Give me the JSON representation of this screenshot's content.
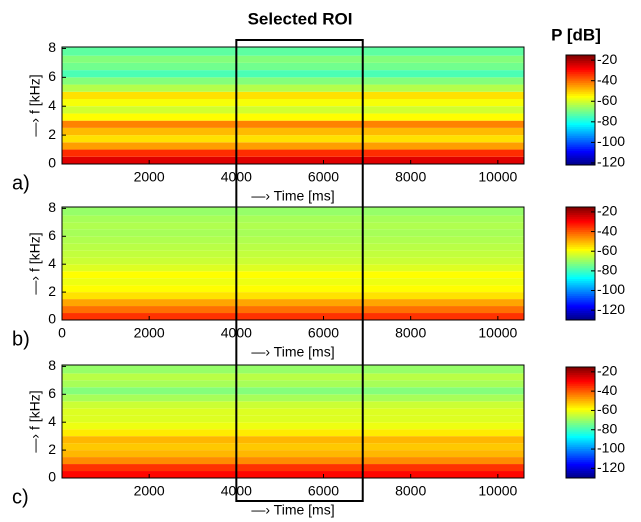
{
  "chart_data": [
    {
      "type": "spectrogram",
      "title": "Selected ROI",
      "colorbar_title": "P [dB]",
      "panel_label": "a)",
      "xlabel": "—› Time [ms]",
      "ylabel": "—› f [kHz]",
      "xlim": [
        0,
        10600
      ],
      "xticks": [
        2000,
        4000,
        6000,
        8000,
        10000
      ],
      "ylim": [
        0,
        8.1
      ],
      "yticks": [
        0,
        2,
        4,
        6,
        8
      ],
      "roi_x": [
        4000,
        6900
      ],
      "freq_bins": [
        0,
        0.5,
        1,
        1.5,
        2,
        2.5,
        3,
        3.5,
        4,
        4.5,
        5,
        5.5,
        6,
        6.5,
        7,
        7.5,
        8.1
      ],
      "levels": [
        -25,
        -33,
        -45,
        -52,
        -48,
        -42,
        -55,
        -60,
        -56,
        -52,
        -63,
        -68,
        -74,
        -70,
        -68,
        -72
      ],
      "clim": [
        -122,
        -15
      ],
      "cticks": [
        -20,
        -40,
        -60,
        -80,
        -100,
        -120
      ]
    },
    {
      "type": "spectrogram",
      "panel_label": "b)",
      "xlabel": "—› Time [ms]",
      "ylabel": "—› f [kHz]",
      "xlim": [
        0,
        10600
      ],
      "xticks": [
        0,
        2000,
        4000,
        6000,
        8000,
        10000
      ],
      "ylim": [
        0,
        8.1
      ],
      "yticks": [
        0,
        2,
        4,
        6,
        8
      ],
      "freq_bins": [
        0,
        0.5,
        1,
        1.5,
        2,
        2.5,
        3,
        3.5,
        4,
        4.5,
        5,
        5.5,
        6,
        6.5,
        7,
        7.5,
        8.1
      ],
      "levels": [
        -35,
        -42,
        -48,
        -55,
        -58,
        -60,
        -58,
        -62,
        -64,
        -65,
        -66,
        -67,
        -68,
        -67,
        -68,
        -70
      ],
      "clim": [
        -130,
        -15
      ],
      "cticks": [
        -20,
        -40,
        -60,
        -80,
        -100,
        -120
      ]
    },
    {
      "type": "spectrogram",
      "panel_label": "c)",
      "xlabel": "—› Time [ms]",
      "ylabel": "—› f [kHz]",
      "xlim": [
        0,
        10600
      ],
      "xticks": [
        2000,
        4000,
        6000,
        8000,
        10000
      ],
      "ylim": [
        0,
        8.1
      ],
      "yticks": [
        0,
        2,
        4,
        6,
        8
      ],
      "freq_bins": [
        0,
        0.5,
        1,
        1.5,
        2,
        2.5,
        3,
        3.5,
        4,
        4.5,
        5,
        5.5,
        6,
        6.5,
        7,
        7.5,
        8.1
      ],
      "levels": [
        -30,
        -35,
        -45,
        -50,
        -52,
        -50,
        -56,
        -60,
        -62,
        -62,
        -64,
        -68,
        -72,
        -68,
        -66,
        -70
      ],
      "clim": [
        -130,
        -15
      ],
      "cticks": [
        -20,
        -40,
        -60,
        -80,
        -100,
        -120
      ]
    }
  ]
}
